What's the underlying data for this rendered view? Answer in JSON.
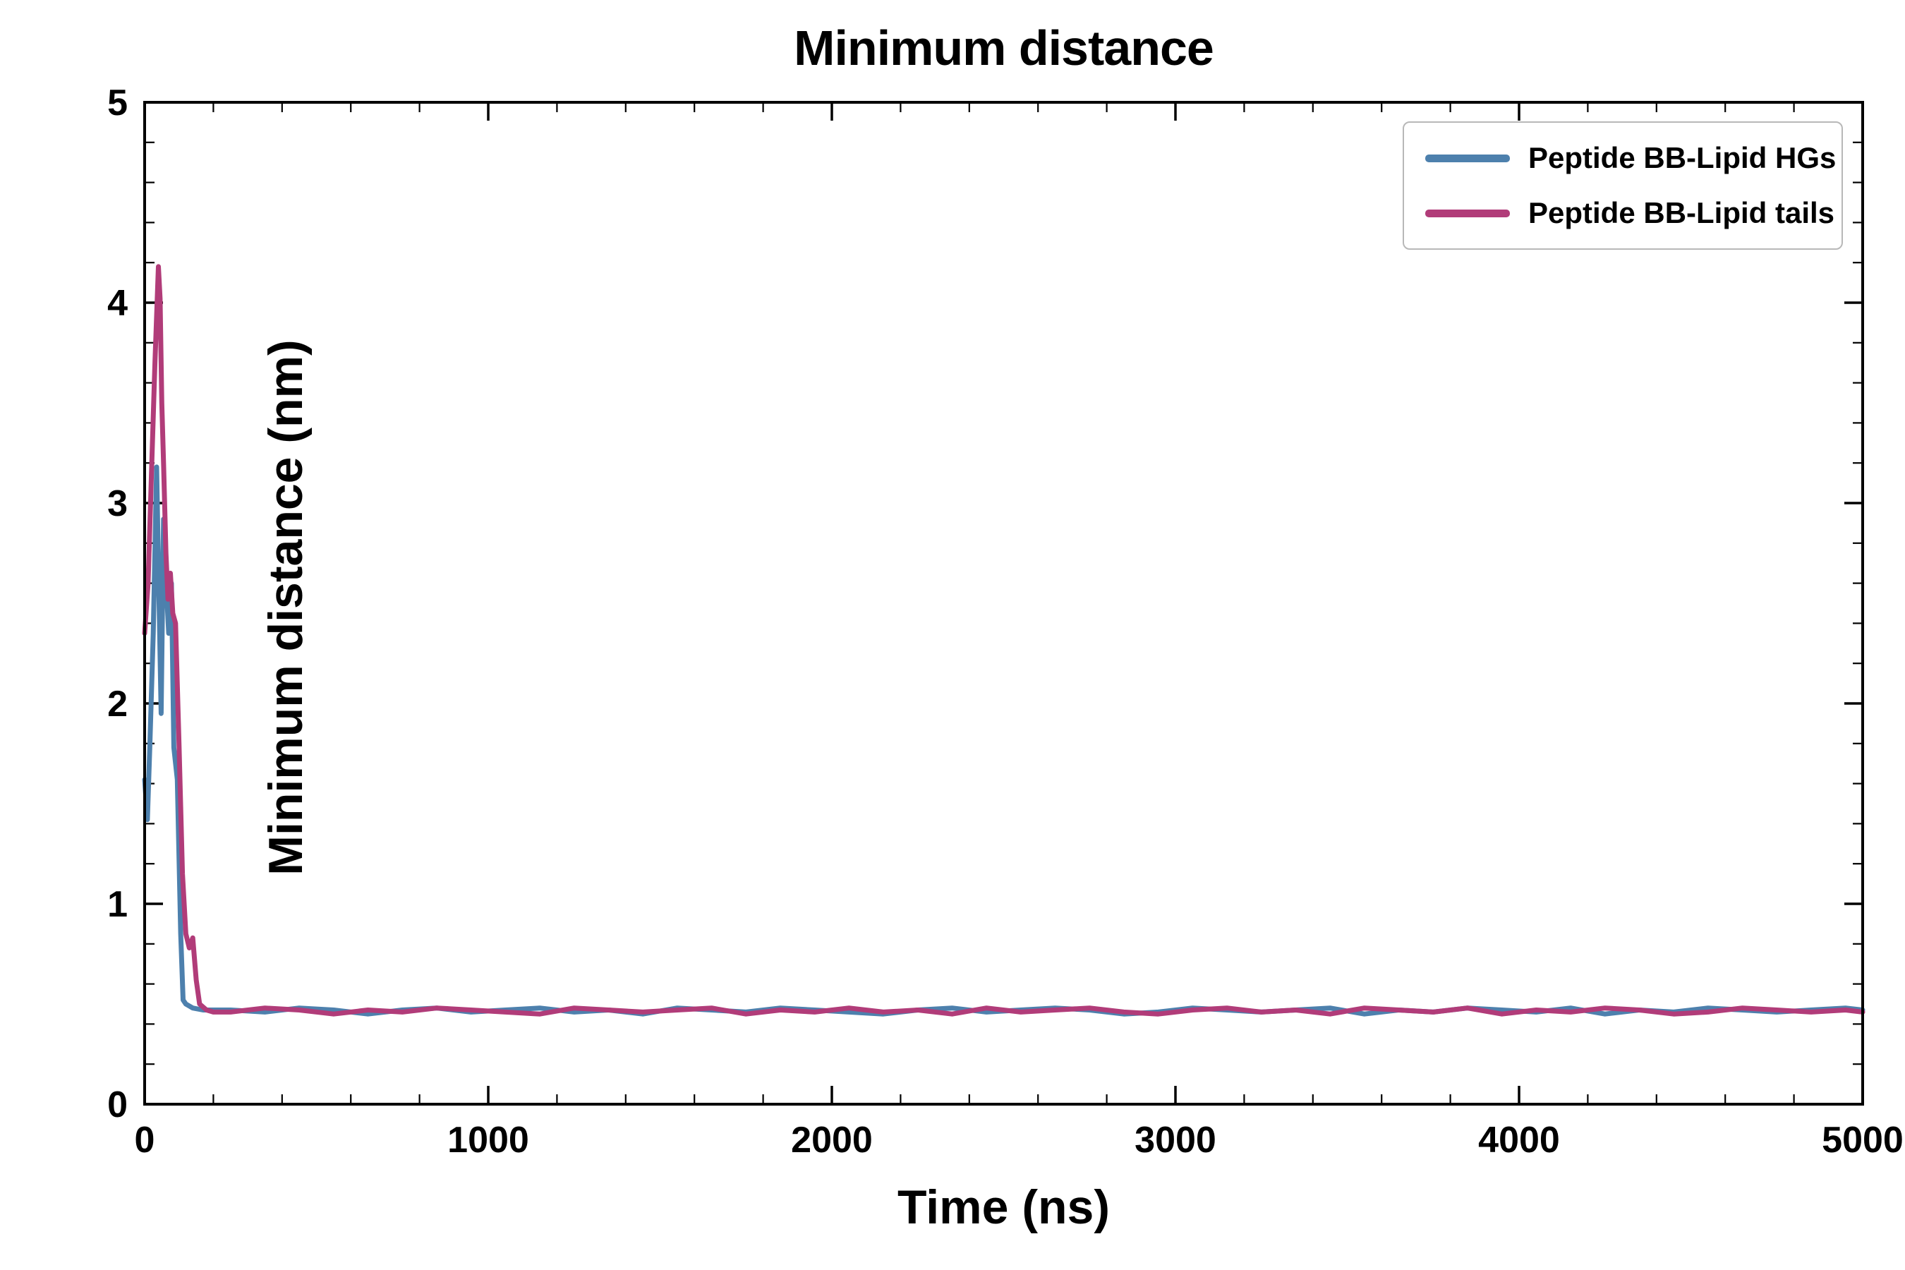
{
  "title": "Minimum distance",
  "chart_data": {
    "type": "line",
    "title": "Minimum distance",
    "xlabel": "Time (ns)",
    "ylabel": "Minimum distance (nm)",
    "xlim": [
      0,
      5000
    ],
    "ylim": [
      0,
      5
    ],
    "x_ticks": [
      0,
      1000,
      2000,
      3000,
      4000,
      5000
    ],
    "y_ticks": [
      0,
      1,
      2,
      3,
      4,
      5
    ],
    "x_minor_step": 200,
    "y_minor_step": 0.2,
    "grid": false,
    "legend_position": "upper right",
    "axis_color": "#000000",
    "series": [
      {
        "name": "Peptide BB-Lipid HGs",
        "color": "#4d80ad",
        "x": [
          0,
          8,
          15,
          25,
          35,
          42,
          48,
          55,
          62,
          70,
          78,
          85,
          95,
          105,
          112,
          120,
          140,
          170,
          200,
          250,
          350,
          450,
          550,
          650,
          750,
          850,
          950,
          1050,
          1150,
          1250,
          1350,
          1450,
          1550,
          1650,
          1750,
          1850,
          1950,
          2050,
          2150,
          2250,
          2350,
          2450,
          2550,
          2650,
          2750,
          2850,
          2950,
          3050,
          3150,
          3250,
          3350,
          3450,
          3550,
          3650,
          3750,
          3850,
          3950,
          4050,
          4150,
          4250,
          4350,
          4450,
          4550,
          4650,
          4750,
          4850,
          4950,
          5000
        ],
        "y": [
          1.62,
          1.42,
          1.78,
          2.35,
          3.18,
          2.5,
          1.95,
          2.92,
          2.62,
          2.35,
          2.6,
          1.78,
          1.62,
          0.85,
          0.52,
          0.5,
          0.48,
          0.47,
          0.47,
          0.47,
          0.46,
          0.48,
          0.47,
          0.45,
          0.47,
          0.48,
          0.46,
          0.47,
          0.48,
          0.46,
          0.47,
          0.45,
          0.48,
          0.47,
          0.46,
          0.48,
          0.47,
          0.46,
          0.45,
          0.47,
          0.48,
          0.46,
          0.47,
          0.48,
          0.47,
          0.45,
          0.46,
          0.48,
          0.47,
          0.46,
          0.47,
          0.48,
          0.45,
          0.47,
          0.46,
          0.48,
          0.47,
          0.46,
          0.48,
          0.45,
          0.47,
          0.46,
          0.48,
          0.47,
          0.46,
          0.47,
          0.48,
          0.47
        ]
      },
      {
        "name": "Peptide BB-Lipid tails",
        "color": "#b13c79",
        "x": [
          0,
          10,
          20,
          30,
          40,
          45,
          50,
          55,
          62,
          68,
          75,
          82,
          90,
          100,
          110,
          120,
          130,
          140,
          150,
          160,
          180,
          200,
          250,
          350,
          450,
          550,
          650,
          750,
          850,
          950,
          1050,
          1150,
          1250,
          1350,
          1450,
          1550,
          1650,
          1750,
          1850,
          1950,
          2050,
          2150,
          2250,
          2350,
          2450,
          2550,
          2650,
          2750,
          2850,
          2950,
          3050,
          3150,
          3250,
          3350,
          3450,
          3550,
          3650,
          3750,
          3850,
          3950,
          4050,
          4150,
          4250,
          4350,
          4450,
          4550,
          4650,
          4750,
          4850,
          4950,
          5000
        ],
        "y": [
          2.35,
          2.6,
          3.15,
          3.7,
          4.18,
          4.02,
          3.5,
          3.2,
          2.75,
          2.52,
          2.65,
          2.45,
          2.4,
          1.8,
          1.15,
          0.85,
          0.78,
          0.83,
          0.62,
          0.5,
          0.47,
          0.46,
          0.46,
          0.48,
          0.47,
          0.45,
          0.47,
          0.46,
          0.48,
          0.47,
          0.46,
          0.45,
          0.48,
          0.47,
          0.46,
          0.47,
          0.48,
          0.45,
          0.47,
          0.46,
          0.48,
          0.46,
          0.47,
          0.45,
          0.48,
          0.46,
          0.47,
          0.48,
          0.46,
          0.45,
          0.47,
          0.48,
          0.46,
          0.47,
          0.45,
          0.48,
          0.47,
          0.46,
          0.48,
          0.45,
          0.47,
          0.46,
          0.48,
          0.47,
          0.45,
          0.46,
          0.48,
          0.47,
          0.46,
          0.47,
          0.46
        ]
      }
    ]
  }
}
